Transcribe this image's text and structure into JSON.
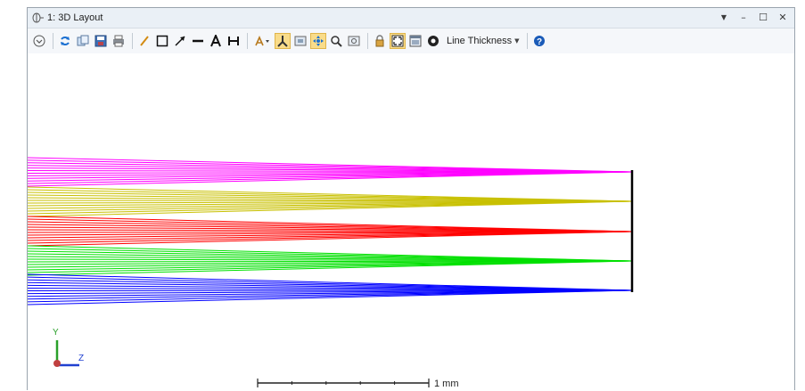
{
  "window": {
    "title": "1: 3D Layout",
    "controls": {
      "menu": "▼",
      "minimize": "–",
      "maximize": "☐",
      "close": "✕"
    }
  },
  "toolbar": {
    "line_thickness_label": "Line Thickness"
  },
  "axes": {
    "y_label": "Y",
    "z_label": "Z"
  },
  "scale_bar": {
    "label": "1 mm"
  },
  "colors": {
    "field1": "#ff00ff",
    "field2": "#c8c000",
    "field3": "#ff0000",
    "field4": "#00e000",
    "field5": "#0000ff",
    "surface": "#000000"
  },
  "icons": [
    "settings-icon",
    "refresh-icon",
    "copy-icon",
    "save-icon",
    "print-icon",
    "pencil-icon",
    "rectangle-icon",
    "arrow-icon",
    "line-icon",
    "text-icon",
    "dimension-icon",
    "rotate-icon",
    "axes-icon",
    "fit-icon",
    "pan-icon",
    "zoom-icon",
    "zoom-window-icon",
    "lock-icon",
    "fullscreen-icon",
    "window-icon",
    "layers-icon",
    "help-icon"
  ]
}
